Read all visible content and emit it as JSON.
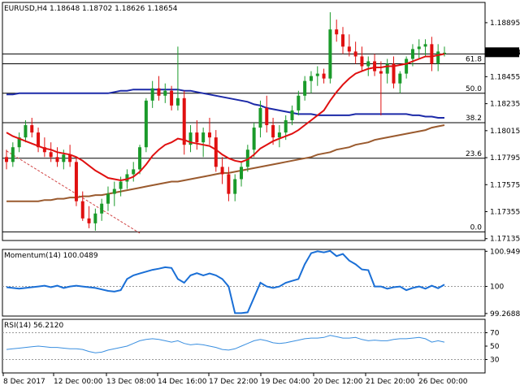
{
  "chart_data": [
    {
      "type": "candlestick",
      "title": "EURUSD,H4  1.18648 1.18702 1.18626 1.18654",
      "current_price_label": "1.18654",
      "y_ticks": [
        "1.18895",
        "1.18654",
        "1.18455",
        "1.18235",
        "1.18015",
        "1.17795",
        "1.17575",
        "1.17355",
        "1.17135"
      ],
      "ylim": [
        1.1712,
        1.1906
      ],
      "x_ticks": [
        "8 Dec 2017",
        "12 Dec 00:00",
        "13 Dec 08:00",
        "14 Dec 16:00",
        "17 Dec 22:00",
        "19 Dec 04:00",
        "20 Dec 12:00",
        "21 Dec 20:00",
        "26 Dec 00:00"
      ],
      "fib_levels": [
        {
          "label": "61.8",
          "price": 1.1856
        },
        {
          "label": "50.0",
          "price": 1.1832
        },
        {
          "label": "38.2",
          "price": 1.1808
        },
        {
          "label": "23.6",
          "price": 1.1779
        },
        {
          "label": "0.0",
          "price": 1.1719
        }
      ],
      "extra_level": 1.1864,
      "trend_line": {
        "from": [
          0,
          1.1785
        ],
        "to": [
          21,
          1.1718
        ]
      },
      "candles": [
        [
          1.178,
          1.1786,
          1.177,
          1.1776
        ],
        [
          1.1776,
          1.1792,
          1.1772,
          1.1788
        ],
        [
          1.1788,
          1.18,
          1.1784,
          1.1796
        ],
        [
          1.1796,
          1.181,
          1.1792,
          1.1806
        ],
        [
          1.1806,
          1.1812,
          1.1796,
          1.18
        ],
        [
          1.18,
          1.1804,
          1.1784,
          1.1788
        ],
        [
          1.1788,
          1.1796,
          1.178,
          1.1784
        ],
        [
          1.1784,
          1.1792,
          1.1776,
          1.178
        ],
        [
          1.178,
          1.1788,
          1.1772,
          1.1776
        ],
        [
          1.1776,
          1.1786,
          1.177,
          1.1782
        ],
        [
          1.1782,
          1.179,
          1.1772,
          1.1776
        ],
        [
          1.1776,
          1.178,
          1.174,
          1.1744
        ],
        [
          1.1744,
          1.1752,
          1.1728,
          1.173
        ],
        [
          1.173,
          1.174,
          1.1722,
          1.1726
        ],
        [
          1.1726,
          1.1738,
          1.172,
          1.1734
        ],
        [
          1.1734,
          1.1746,
          1.1728,
          1.1742
        ],
        [
          1.1742,
          1.1756,
          1.1736,
          1.175
        ],
        [
          1.175,
          1.176,
          1.174,
          1.1754
        ],
        [
          1.1754,
          1.1764,
          1.1748,
          1.176
        ],
        [
          1.176,
          1.177,
          1.1754,
          1.1766
        ],
        [
          1.1766,
          1.1776,
          1.176,
          1.177
        ],
        [
          1.177,
          1.179,
          1.1766,
          1.1788
        ],
        [
          1.1788,
          1.1828,
          1.1784,
          1.1826
        ],
        [
          1.1826,
          1.1842,
          1.182,
          1.1836
        ],
        [
          1.1836,
          1.1846,
          1.1826,
          1.183
        ],
        [
          1.183,
          1.184,
          1.1824,
          1.1834
        ],
        [
          1.1834,
          1.1838,
          1.1818,
          1.1822
        ],
        [
          1.1822,
          1.187,
          1.1818,
          1.1828
        ],
        [
          1.1828,
          1.1834,
          1.1782,
          1.179
        ],
        [
          1.179,
          1.1806,
          1.1784,
          1.18
        ],
        [
          1.18,
          1.181,
          1.1786,
          1.1792
        ],
        [
          1.1792,
          1.1804,
          1.178,
          1.18
        ],
        [
          1.18,
          1.1812,
          1.179,
          1.1796
        ],
        [
          1.1796,
          1.1802,
          1.1768,
          1.1772
        ],
        [
          1.1772,
          1.178,
          1.1758,
          1.1766
        ],
        [
          1.1766,
          1.1772,
          1.1744,
          1.175
        ],
        [
          1.175,
          1.1766,
          1.1744,
          1.1762
        ],
        [
          1.1762,
          1.1776,
          1.1756,
          1.1772
        ],
        [
          1.1772,
          1.179,
          1.1768,
          1.1786
        ],
        [
          1.1786,
          1.1808,
          1.178,
          1.1804
        ],
        [
          1.1804,
          1.1826,
          1.1796,
          1.182
        ],
        [
          1.182,
          1.183,
          1.18,
          1.1806
        ],
        [
          1.1806,
          1.1812,
          1.179,
          1.1796
        ],
        [
          1.1796,
          1.1806,
          1.1788,
          1.18
        ],
        [
          1.18,
          1.1814,
          1.1794,
          1.181
        ],
        [
          1.181,
          1.1822,
          1.1806,
          1.1818
        ],
        [
          1.1818,
          1.1834,
          1.1814,
          1.183
        ],
        [
          1.183,
          1.1846,
          1.1826,
          1.1842
        ],
        [
          1.1842,
          1.185,
          1.1832,
          1.1846
        ],
        [
          1.1846,
          1.1854,
          1.1838,
          1.1848
        ],
        [
          1.1848,
          1.1852,
          1.184,
          1.1844
        ],
        [
          1.1844,
          1.1898,
          1.184,
          1.1884
        ],
        [
          1.1884,
          1.1892,
          1.1874,
          1.188
        ],
        [
          1.188,
          1.1886,
          1.1864,
          1.187
        ],
        [
          1.187,
          1.188,
          1.1862,
          1.1866
        ],
        [
          1.1866,
          1.1874,
          1.1856,
          1.1862
        ],
        [
          1.1862,
          1.187,
          1.185,
          1.1854
        ],
        [
          1.1854,
          1.1862,
          1.1846,
          1.1858
        ],
        [
          1.1858,
          1.1864,
          1.1846,
          1.185
        ],
        [
          1.185,
          1.1858,
          1.1814,
          1.1848
        ],
        [
          1.1848,
          1.186,
          1.184,
          1.1856
        ],
        [
          1.1856,
          1.1862,
          1.1836,
          1.184
        ],
        [
          1.184,
          1.185,
          1.1832,
          1.1848
        ],
        [
          1.1848,
          1.1862,
          1.1844,
          1.186
        ],
        [
          1.186,
          1.1872,
          1.1854,
          1.1868
        ],
        [
          1.1868,
          1.1876,
          1.186,
          1.187
        ],
        [
          1.187,
          1.1876,
          1.1862,
          1.1872
        ],
        [
          1.1872,
          1.1878,
          1.185,
          1.1856
        ],
        [
          1.1856,
          1.1872,
          1.185,
          1.1866
        ],
        [
          1.1864,
          1.187,
          1.1862,
          1.1865
        ]
      ],
      "sma_red": [
        1.18,
        1.1797,
        1.1795,
        1.1793,
        1.1791,
        1.1789,
        1.1787,
        1.1786,
        1.1784,
        1.1783,
        1.1782,
        1.178,
        1.1777,
        1.1773,
        1.1769,
        1.1766,
        1.1763,
        1.1762,
        1.1761,
        1.1762,
        1.1764,
        1.1768,
        1.1774,
        1.1781,
        1.1786,
        1.179,
        1.1792,
        1.1795,
        1.1794,
        1.1792,
        1.1791,
        1.179,
        1.1789,
        1.1786,
        1.1782,
        1.1779,
        1.1777,
        1.1776,
        1.1778,
        1.1782,
        1.1787,
        1.179,
        1.1793,
        1.1795,
        1.1797,
        1.1799,
        1.1802,
        1.1806,
        1.181,
        1.1814,
        1.1818,
        1.1826,
        1.1833,
        1.1839,
        1.1844,
        1.1848,
        1.185,
        1.1852,
        1.1853,
        1.1853,
        1.1854,
        1.1854,
        1.1855,
        1.1856,
        1.1858,
        1.186,
        1.1862,
        1.1862,
        1.1863,
        1.1864
      ],
      "sma_blue": [
        1.1831,
        1.1831,
        1.1832,
        1.1832,
        1.1832,
        1.1832,
        1.1832,
        1.1832,
        1.1832,
        1.1832,
        1.1832,
        1.1832,
        1.1832,
        1.1832,
        1.1832,
        1.1832,
        1.1832,
        1.1833,
        1.1834,
        1.1834,
        1.1835,
        1.1835,
        1.1835,
        1.1835,
        1.1835,
        1.1835,
        1.1835,
        1.1835,
        1.1834,
        1.1834,
        1.1833,
        1.1832,
        1.1831,
        1.183,
        1.1829,
        1.1828,
        1.1827,
        1.1826,
        1.1825,
        1.1823,
        1.1822,
        1.182,
        1.1819,
        1.1818,
        1.1817,
        1.1816,
        1.1815,
        1.1815,
        1.1815,
        1.1814,
        1.1814,
        1.1814,
        1.1814,
        1.1814,
        1.1814,
        1.1815,
        1.1815,
        1.1815,
        1.1815,
        1.1815,
        1.1815,
        1.1815,
        1.1815,
        1.1815,
        1.1814,
        1.1814,
        1.1813,
        1.1813,
        1.1812,
        1.1812
      ],
      "sma_brown": [
        1.1744,
        1.1744,
        1.1744,
        1.1744,
        1.1744,
        1.1744,
        1.1745,
        1.1745,
        1.1746,
        1.1746,
        1.1747,
        1.1747,
        1.1748,
        1.1748,
        1.1749,
        1.1749,
        1.175,
        1.1751,
        1.1752,
        1.1753,
        1.1754,
        1.1755,
        1.1756,
        1.1757,
        1.1758,
        1.1759,
        1.176,
        1.176,
        1.1761,
        1.1762,
        1.1763,
        1.1764,
        1.1765,
        1.1766,
        1.1767,
        1.1767,
        1.1768,
        1.1769,
        1.177,
        1.1771,
        1.1772,
        1.1773,
        1.1774,
        1.1775,
        1.1776,
        1.1777,
        1.1778,
        1.1779,
        1.178,
        1.1782,
        1.1783,
        1.1784,
        1.1786,
        1.1787,
        1.1788,
        1.179,
        1.1791,
        1.1792,
        1.1794,
        1.1795,
        1.1796,
        1.1797,
        1.1798,
        1.1799,
        1.18,
        1.1801,
        1.1802,
        1.1804,
        1.1805,
        1.1806
      ]
    },
    {
      "type": "line",
      "title": "Momentum(14) 100.0489",
      "y_ticks": [
        "100.9499",
        "100",
        "99.2688"
      ],
      "ylim": [
        99.2,
        101.0
      ],
      "reference": 100,
      "values": [
        99.98,
        99.96,
        99.94,
        99.96,
        99.98,
        100.0,
        100.02,
        99.98,
        100.02,
        99.96,
        100.0,
        100.02,
        100.0,
        99.98,
        99.96,
        99.92,
        99.88,
        99.86,
        99.9,
        100.2,
        100.3,
        100.35,
        100.4,
        100.45,
        100.48,
        100.52,
        100.5,
        100.2,
        100.1,
        100.3,
        100.36,
        100.3,
        100.35,
        100.3,
        100.2,
        100.0,
        99.28,
        99.28,
        99.3,
        99.7,
        100.1,
        100.0,
        99.96,
        100.0,
        100.1,
        100.15,
        100.2,
        100.6,
        100.9,
        100.95,
        100.92,
        100.96,
        100.82,
        100.88,
        100.7,
        100.6,
        100.46,
        100.44,
        100.0,
        100.0,
        99.94,
        99.98,
        100.0,
        99.9,
        99.96,
        100.0,
        99.94,
        100.02,
        99.95,
        100.05
      ]
    },
    {
      "type": "line",
      "title": "RSI(14) 56.2120",
      "y_ticks": [
        "70",
        "50",
        "30"
      ],
      "ylim": [
        10,
        90
      ],
      "values": [
        45,
        46,
        47,
        48,
        49,
        50,
        49,
        48,
        48,
        47,
        46,
        46,
        45,
        42,
        40,
        41,
        44,
        46,
        48,
        50,
        54,
        58,
        60,
        61,
        60,
        58,
        56,
        58,
        54,
        52,
        53,
        52,
        50,
        48,
        45,
        44,
        46,
        50,
        54,
        58,
        60,
        58,
        55,
        54,
        55,
        57,
        59,
        61,
        62,
        62,
        63,
        66,
        64,
        62,
        62,
        63,
        60,
        58,
        59,
        58,
        58,
        60,
        61,
        61,
        62,
        63,
        61,
        56,
        58,
        56
      ]
    }
  ]
}
